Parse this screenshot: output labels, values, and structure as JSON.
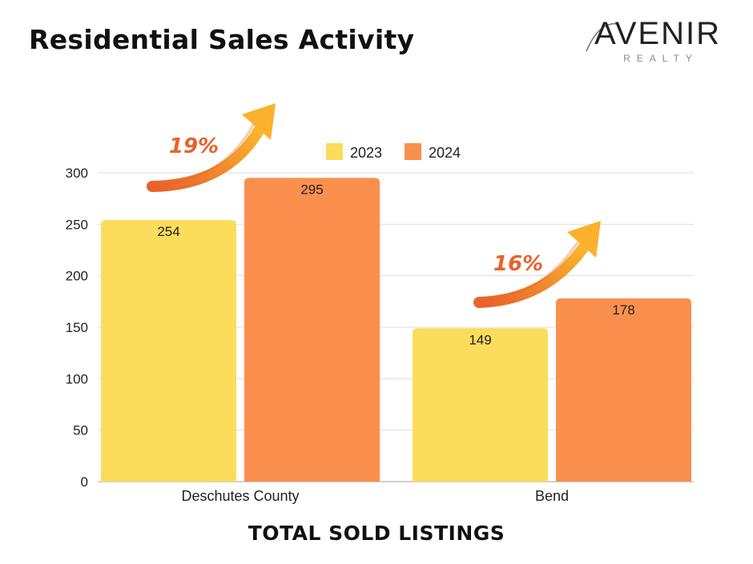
{
  "title": "Residential Sales Activity",
  "logo": {
    "word": "AVENIR",
    "sub": "REALTY"
  },
  "colors": {
    "2023": "#fbdc5b",
    "2024": "#fb8f4d",
    "arrow_start": "#e8622c",
    "arrow_end": "#fbc02d"
  },
  "chart_data": {
    "type": "bar",
    "title": "Residential Sales Activity",
    "xlabel": "TOTAL SOLD LISTINGS",
    "ylabel": "",
    "categories": [
      "Deschutes County",
      "Bend"
    ],
    "series": [
      {
        "name": "2023",
        "values": [
          254,
          149
        ]
      },
      {
        "name": "2024",
        "values": [
          295,
          178
        ]
      }
    ],
    "ylim": [
      0,
      300
    ],
    "yticks": [
      0,
      50,
      100,
      150,
      200,
      250,
      300
    ],
    "grid": true,
    "legend": "top-center",
    "annotations": [
      "19%",
      "16%"
    ]
  }
}
